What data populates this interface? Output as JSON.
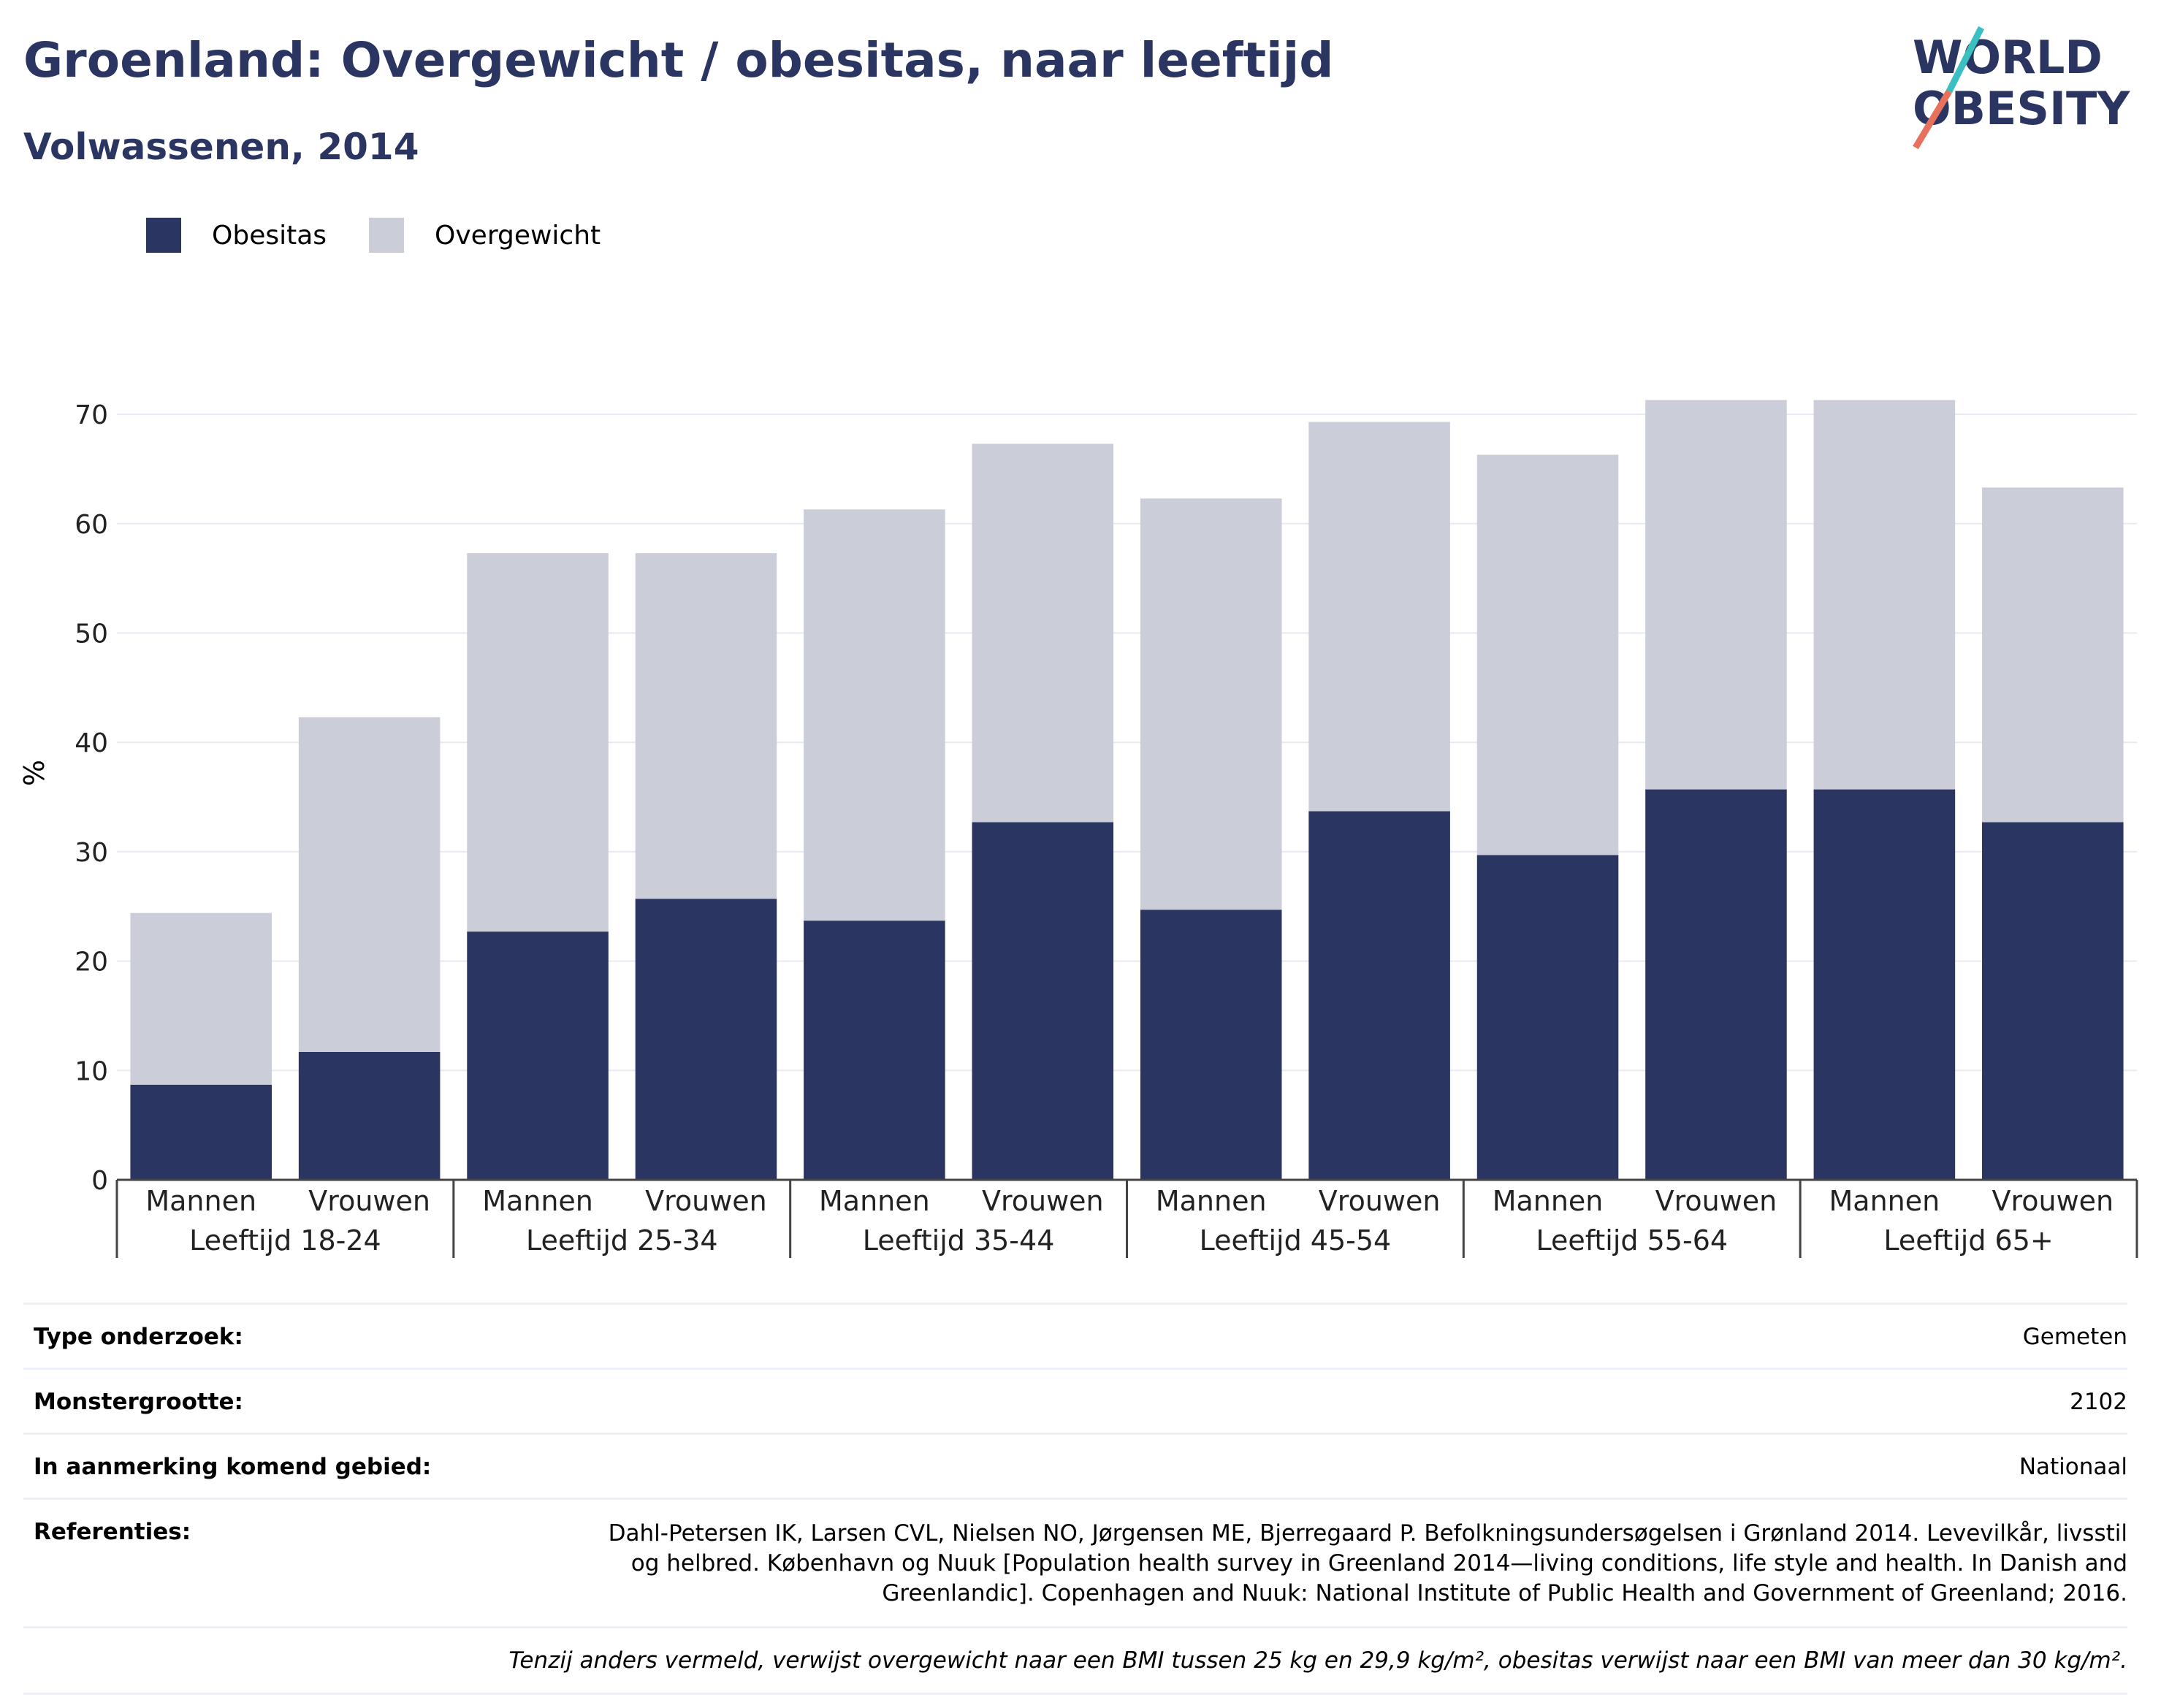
{
  "header": {
    "title": "Groenland: Overgewicht / obesitas, naar leeftijd",
    "subtitle": "Volwassenen, 2014"
  },
  "logo": {
    "line1": "WORLD",
    "line2": "OBESITY",
    "colors": {
      "text": "#2b3561",
      "slash_top": "#3bbfc0",
      "slash_bottom": "#e8715e"
    }
  },
  "legend": [
    {
      "label": "Obesitas",
      "color": "#2b3561"
    },
    {
      "label": "Overgewicht",
      "color": "#cbcdd8"
    }
  ],
  "chart_data": {
    "type": "bar",
    "stacked": true,
    "ylabel": "%",
    "ylim": [
      0,
      72
    ],
    "yticks": [
      0,
      10,
      20,
      30,
      40,
      50,
      60,
      70
    ],
    "grid": true,
    "legend_position": "top-left",
    "categories": [
      "Mannen",
      "Vrouwen",
      "Mannen",
      "Vrouwen",
      "Mannen",
      "Vrouwen",
      "Mannen",
      "Vrouwen",
      "Mannen",
      "Vrouwen",
      "Mannen",
      "Vrouwen"
    ],
    "groups": [
      "Leeftijd 18-24",
      "Leeftijd 25-34",
      "Leeftijd 35-44",
      "Leeftijd 45-54",
      "Leeftijd 55-64",
      "Leeftijd 65+"
    ],
    "series": [
      {
        "name": "Obesitas",
        "color": "#2b3561",
        "values": [
          8.7,
          11.7,
          22.7,
          25.7,
          23.7,
          32.7,
          24.7,
          33.7,
          29.7,
          35.7,
          35.7,
          32.7
        ]
      },
      {
        "name": "Overgewicht",
        "color": "#cbcdd8",
        "values": [
          15.7,
          30.6,
          34.6,
          31.6,
          37.6,
          34.6,
          37.6,
          35.6,
          36.6,
          35.6,
          35.6,
          30.6
        ]
      }
    ],
    "totals": [
      24.4,
      42.3,
      57.3,
      57.3,
      61.3,
      67.3,
      62.3,
      69.3,
      66.3,
      71.3,
      71.3,
      63.3
    ]
  },
  "info": {
    "rows": [
      {
        "label": "Type onderzoek:",
        "value": "Gemeten"
      },
      {
        "label": "Monstergrootte:",
        "value": "2102"
      },
      {
        "label": "In aanmerking komend gebied:",
        "value": "Nationaal"
      },
      {
        "label": "Referenties:",
        "value": "Dahl-Petersen IK, Larsen CVL, Nielsen NO, Jørgensen ME, Bjerregaard P. Befolkningsundersøgelsen i Grønland 2014. Levevilkår, livsstil og helbred. København og Nuuk [Population health survey in Greenland 2014—living conditions, life style and health. In Danish and Greenlandic]. Copenhagen and Nuuk: National Institute of Public Health and Government of Greenland; 2016."
      }
    ],
    "footnote": "Tenzij anders vermeld, verwijst overgewicht naar een BMI tussen 25 kg en 29,9 kg/m², obesitas verwijst naar een BMI van meer dan 30 kg/m²."
  }
}
